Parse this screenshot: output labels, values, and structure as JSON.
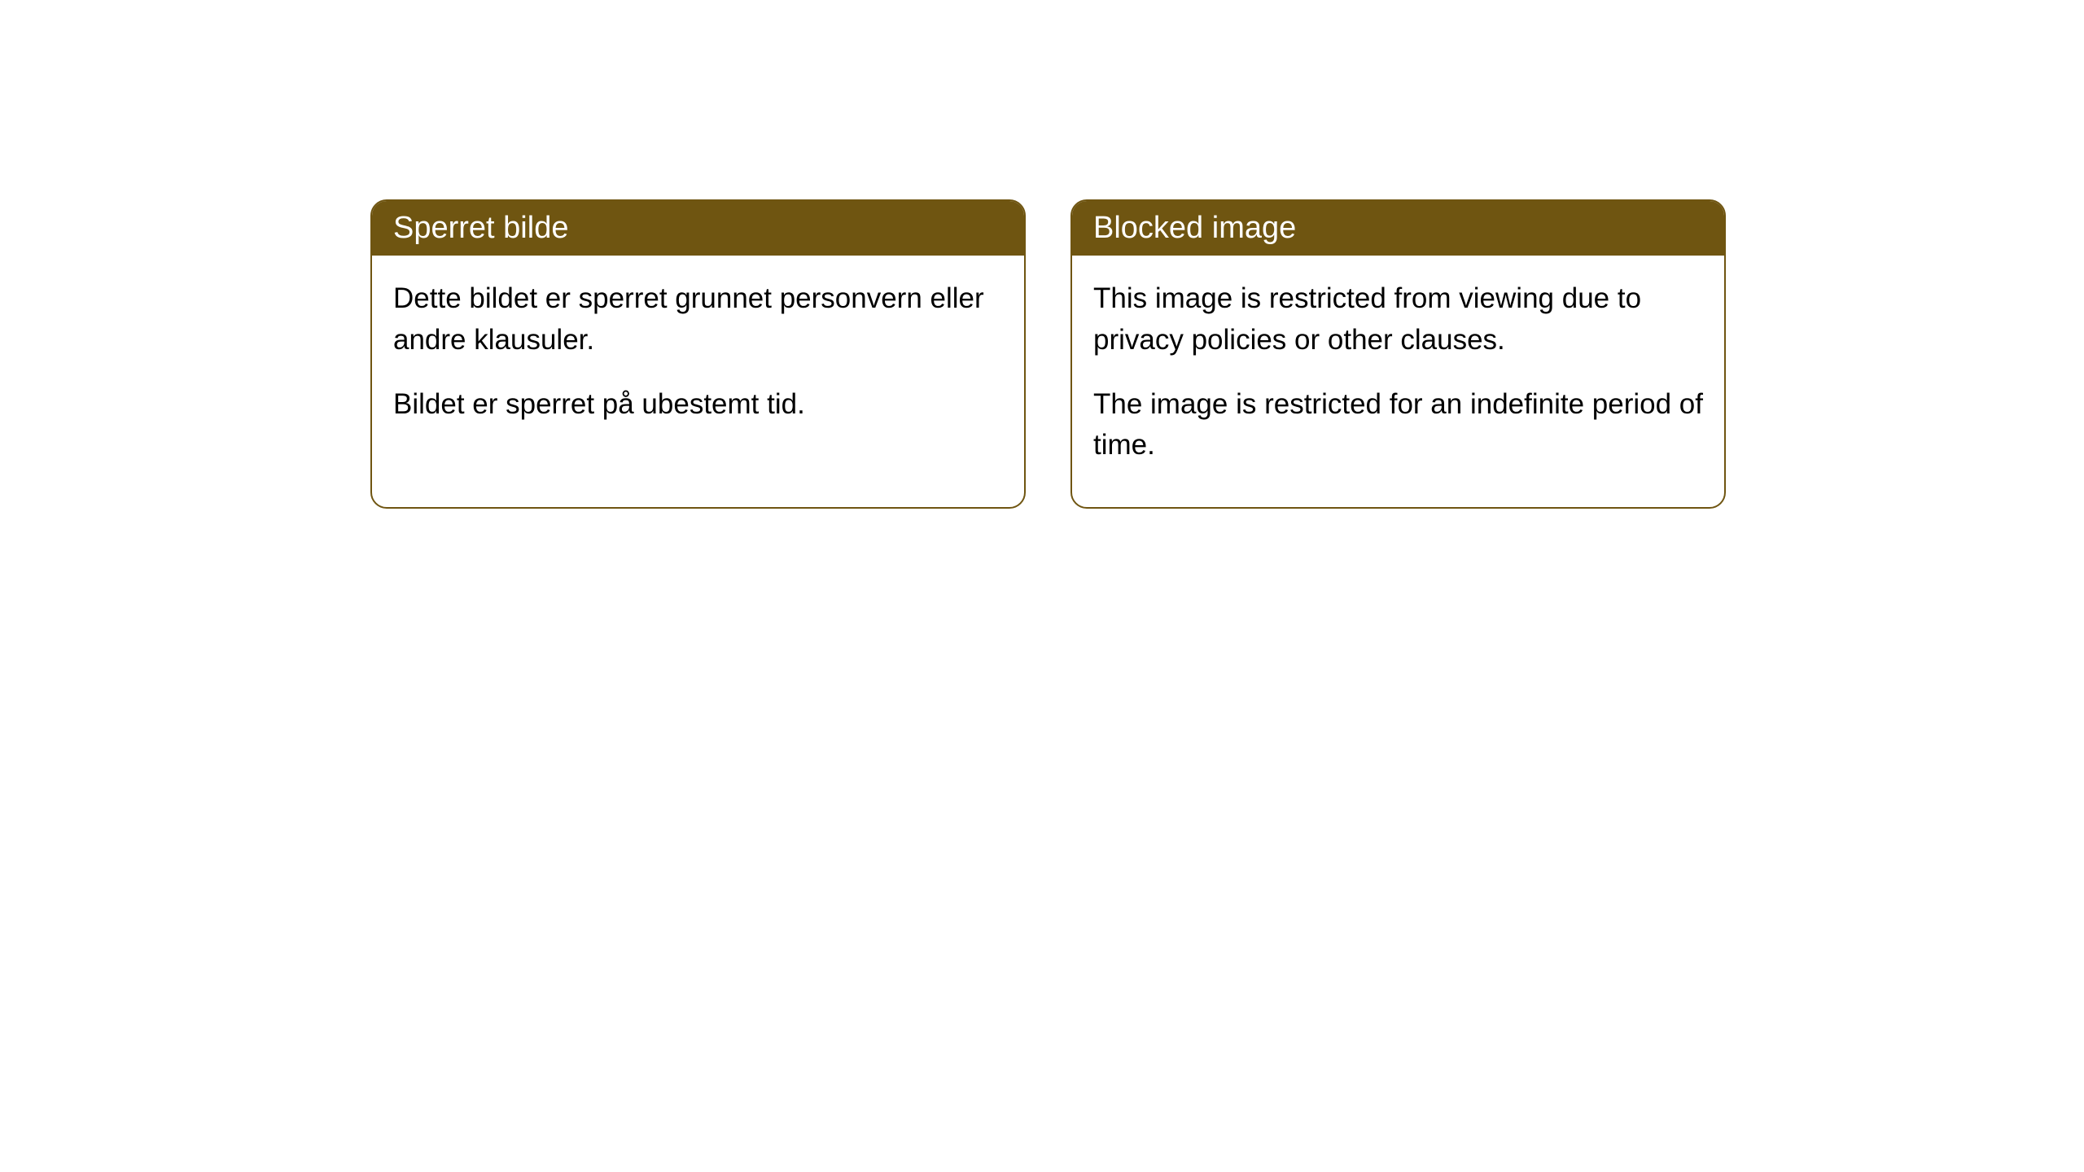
{
  "cards": [
    {
      "title": "Sperret bilde",
      "paragraph1": "Dette bildet er sperret grunnet personvern eller andre klausuler.",
      "paragraph2": "Bildet er sperret på ubestemt tid."
    },
    {
      "title": "Blocked image",
      "paragraph1": "This image is restricted from viewing due to privacy policies or other clauses.",
      "paragraph2": "The image is restricted for an indefinite period of time."
    }
  ],
  "styling": {
    "header_bg_color": "#6f5511",
    "header_text_color": "#ffffff",
    "border_color": "#6f5511",
    "body_bg_color": "#ffffff",
    "body_text_color": "#000000",
    "title_fontsize": 38,
    "body_fontsize": 35,
    "border_radius": 20
  }
}
